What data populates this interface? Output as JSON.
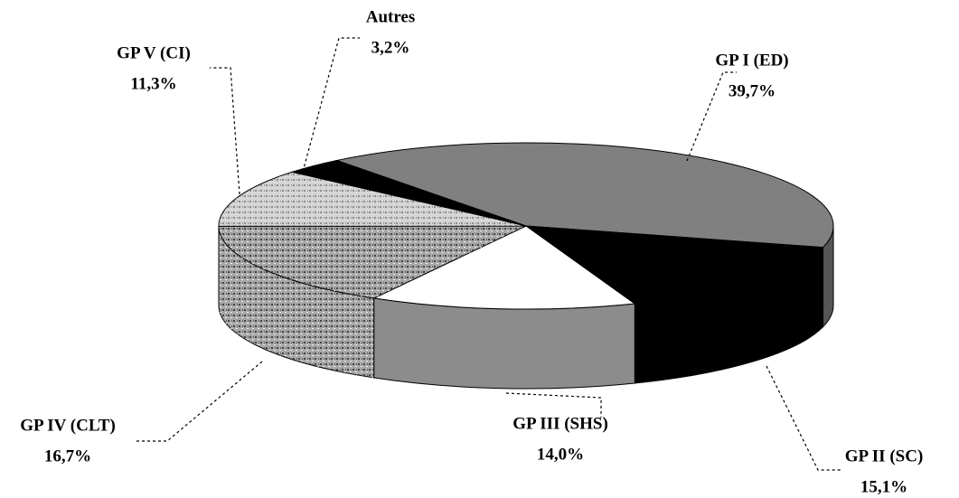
{
  "chart_data": {
    "type": "pie3d",
    "categories": [
      "GP I (ED)",
      "GP II (SC)",
      "GP III (SHS)",
      "GP IV (CLT)",
      "GP V (CI)",
      "Autres"
    ],
    "values": [
      39.7,
      15.1,
      14.0,
      16.7,
      11.3,
      3.2
    ],
    "value_labels": [
      "39,7%",
      "15,1%",
      "14,0%",
      "16,7%",
      "11,3%",
      "3,2%"
    ],
    "colors": [
      "#808080",
      "#000000",
      "#ffffff",
      "#a8a8a8",
      "#d4d4d4",
      "#000000"
    ],
    "side_colors": [
      "#555555",
      "#000000",
      "#8c8c8c",
      "#a8a8a8",
      "#d4d4d4",
      "#000000"
    ]
  }
}
